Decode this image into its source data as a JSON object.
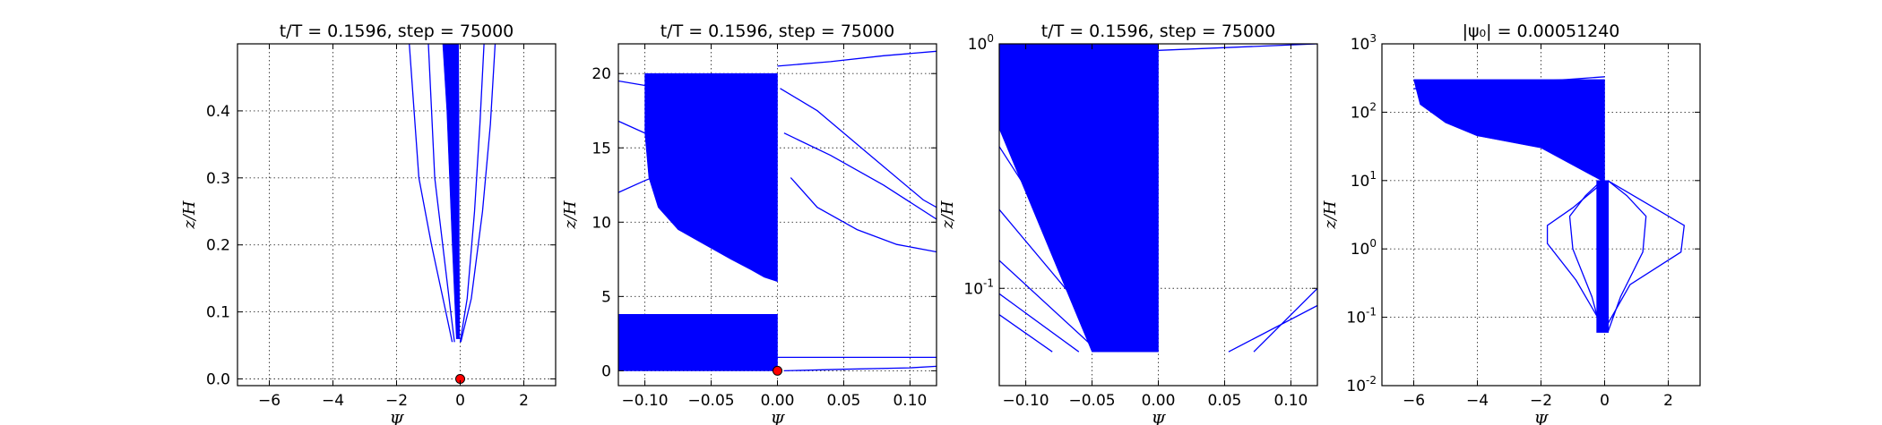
{
  "chart_data": [
    {
      "type": "line",
      "title": "t/T = 0.1596, step = 75000",
      "xlabel": "Ψ",
      "ylabel": "z/H",
      "xlim": [
        -7,
        3
      ],
      "ylim": [
        -0.01,
        0.5
      ],
      "xscale": "linear",
      "yscale": "linear",
      "xticks": [
        -6,
        -4,
        -2,
        0,
        2
      ],
      "yticks": [
        0.0,
        0.1,
        0.2,
        0.3,
        0.4
      ],
      "grid": true,
      "curves": [
        {
          "x": [
            -0.25,
            -0.45,
            -0.9,
            -1.3,
            -1.6
          ],
          "y": [
            0.055,
            0.1,
            0.2,
            0.3,
            0.5
          ]
        },
        {
          "x": [
            -0.18,
            -0.3,
            -0.55,
            -0.8,
            -1.0
          ],
          "y": [
            0.055,
            0.1,
            0.2,
            0.3,
            0.5
          ]
        },
        {
          "x": [
            0.0,
            0.22,
            0.45,
            0.62,
            0.75
          ],
          "y": [
            0.055,
            0.12,
            0.25,
            0.38,
            0.5
          ]
        },
        {
          "x": [
            0.02,
            0.35,
            0.7,
            0.95,
            1.1
          ],
          "y": [
            0.055,
            0.12,
            0.25,
            0.38,
            0.5
          ]
        }
      ],
      "band": {
        "x_left": [
          -0.12,
          -0.25,
          -0.42,
          -0.55
        ],
        "x_right": [
          -0.02,
          -0.03,
          -0.04,
          -0.05
        ],
        "y": [
          0.06,
          0.2,
          0.4,
          0.5
        ]
      },
      "markers": [
        {
          "x": 0.0,
          "y": 0.0
        }
      ]
    },
    {
      "type": "line",
      "title": "t/T = 0.1596, step = 75000",
      "xlabel": "Ψ",
      "ylabel": "z/H",
      "xlim": [
        -0.12,
        0.12
      ],
      "ylim": [
        -1,
        22
      ],
      "xscale": "linear",
      "yscale": "linear",
      "xticks": [
        -0.1,
        -0.05,
        0.0,
        0.05,
        0.1
      ],
      "yticks": [
        0,
        5,
        10,
        15,
        20
      ],
      "grid": true,
      "curves": [
        {
          "x": [
            -0.02,
            -0.04,
            -0.07,
            -0.1,
            -0.12
          ],
          "y": [
            15,
            17,
            18.5,
            19.2,
            19.5
          ]
        },
        {
          "x": [
            0.01,
            0.03,
            0.06,
            0.09,
            0.12
          ],
          "y": [
            13,
            11,
            9.5,
            8.5,
            8
          ]
        },
        {
          "x": [
            0.005,
            0.04,
            0.08,
            0.12
          ],
          "y": [
            16,
            14.5,
            12.5,
            10.2
          ]
        },
        {
          "x": [
            0.002,
            0.03,
            0.07,
            0.11,
            0.12
          ],
          "y": [
            19,
            17.5,
            14.5,
            11.5,
            11
          ]
        },
        {
          "x": [
            0.0,
            0.04,
            0.08,
            0.12
          ],
          "y": [
            20.5,
            20.8,
            21.2,
            21.5
          ]
        },
        {
          "x": [
            -0.12,
            -0.1,
            -0.08,
            -0.06
          ],
          "y": [
            12,
            12.8,
            13.5,
            14
          ]
        },
        {
          "x": [
            -0.12,
            -0.1,
            -0.08,
            -0.06
          ],
          "y": [
            16.8,
            16,
            15.5,
            15.2
          ]
        },
        {
          "x": [
            -0.12,
            -0.08,
            -0.04,
            0.0
          ],
          "y": [
            0.3,
            0.4,
            0.5,
            0.6
          ]
        },
        {
          "x": [
            0.005,
            0.05,
            0.1,
            0.12
          ],
          "y": [
            0.0,
            0.1,
            0.2,
            0.3
          ]
        },
        {
          "x": [
            0.0,
            0.04,
            0.08,
            0.12
          ],
          "y": [
            0.9,
            0.9,
            0.9,
            0.9
          ]
        }
      ],
      "band": {
        "x_left": [
          -0.1,
          -0.1,
          -0.097,
          -0.09,
          -0.075,
          -0.055,
          -0.035,
          -0.02,
          -0.01,
          0.0
        ],
        "x_right": [
          0.0,
          0.0,
          0.0,
          0.0,
          0.0,
          0.0,
          0.0,
          0.0,
          0.0,
          0.0
        ],
        "y": [
          20,
          16,
          13,
          11,
          9.5,
          8.5,
          7.5,
          6.8,
          6.3,
          6
        ]
      },
      "lower_band": {
        "x_left": [
          -0.12,
          -0.12
        ],
        "x_right": [
          0.0,
          0.0
        ],
        "y": [
          0.0,
          3.8
        ]
      },
      "markers": [
        {
          "x": 0.0,
          "y": 0.0
        }
      ]
    },
    {
      "type": "line",
      "title": "t/T = 0.1596, step = 75000",
      "xlabel": "Ψ",
      "ylabel": "z/H",
      "xlim": [
        -0.12,
        0.12
      ],
      "ylim": [
        0.04,
        1.0
      ],
      "xscale": "linear",
      "yscale": "log",
      "xticks": [
        -0.1,
        -0.05,
        0.0,
        0.05,
        0.1
      ],
      "yticks": [
        0.1,
        1.0
      ],
      "ytick_labels": [
        "10^-1",
        "10^0"
      ],
      "grid": true,
      "curves": [
        {
          "x": [
            -0.08,
            -0.12
          ],
          "y": [
            0.055,
            0.078
          ]
        },
        {
          "x": [
            -0.06,
            -0.12
          ],
          "y": [
            0.055,
            0.095
          ]
        },
        {
          "x": [
            -0.045,
            -0.12
          ],
          "y": [
            0.055,
            0.13
          ]
        },
        {
          "x": [
            -0.03,
            -0.12
          ],
          "y": [
            0.055,
            0.21
          ]
        },
        {
          "x": [
            -0.02,
            -0.12
          ],
          "y": [
            0.055,
            0.38
          ]
        },
        {
          "x": [
            0.053,
            0.12
          ],
          "y": [
            0.055,
            0.085
          ]
        },
        {
          "x": [
            0.072,
            0.12
          ],
          "y": [
            0.055,
            0.1
          ]
        },
        {
          "x": [
            0.0,
            0.12
          ],
          "y": [
            0.94,
            1.0
          ]
        }
      ],
      "band": {
        "x_left": [
          -0.05,
          -0.12,
          -0.12
        ],
        "x_right": [
          0.0,
          0.0,
          0.0
        ],
        "y": [
          0.055,
          0.45,
          1.0
        ]
      }
    },
    {
      "type": "line",
      "title": "|ψ₀| = 0.00051240",
      "xlabel": "Ψ",
      "ylabel": "z/H",
      "xlim": [
        -7,
        3
      ],
      "ylim": [
        0.01,
        1000
      ],
      "xscale": "linear",
      "yscale": "log",
      "xticks": [
        -6,
        -4,
        -2,
        0,
        2
      ],
      "yticks": [
        0.01,
        0.1,
        1,
        10,
        100,
        1000
      ],
      "ytick_labels": [
        "10^-2",
        "10^-1",
        "10^0",
        "10^1",
        "10^2",
        "10^3"
      ],
      "grid": true,
      "curves": [
        {
          "x": [
            -0.1,
            -0.4,
            -1.0,
            -1.1,
            -0.6,
            -0.1
          ],
          "y": [
            0.06,
            0.2,
            1,
            3,
            6,
            10
          ]
        },
        {
          "x": [
            0.1,
            0.5,
            1.2,
            1.3,
            0.7,
            0.1
          ],
          "y": [
            0.06,
            0.2,
            0.9,
            3,
            6,
            10
          ]
        },
        {
          "x": [
            0.1,
            0.8,
            2.4,
            2.5,
            1.2,
            0.1
          ],
          "y": [
            0.08,
            0.3,
            0.9,
            2.2,
            5,
            10
          ]
        },
        {
          "x": [
            -0.1,
            -0.9,
            -1.8,
            -1.8,
            -1.0,
            -0.1
          ],
          "y": [
            0.08,
            0.35,
            1.2,
            2.2,
            4,
            9
          ]
        },
        {
          "x": [
            -6.0,
            -4.8,
            -3.6,
            -2.4,
            -1.2,
            0.0
          ],
          "y": [
            220,
            240,
            260,
            280,
            300,
            330
          ]
        }
      ],
      "band": {
        "x_left": [
          -6.0,
          -5.8,
          -5.0,
          -4.0,
          -2.0,
          -0.1
        ],
        "x_right": [
          0.0,
          0.0,
          0.0,
          0.0,
          0.0,
          0.0
        ],
        "y": [
          300,
          130,
          70,
          45,
          30,
          10
        ]
      },
      "stem": {
        "x_left": -0.25,
        "x_right": 0.12,
        "y": [
          0.06,
          10
        ]
      }
    }
  ]
}
